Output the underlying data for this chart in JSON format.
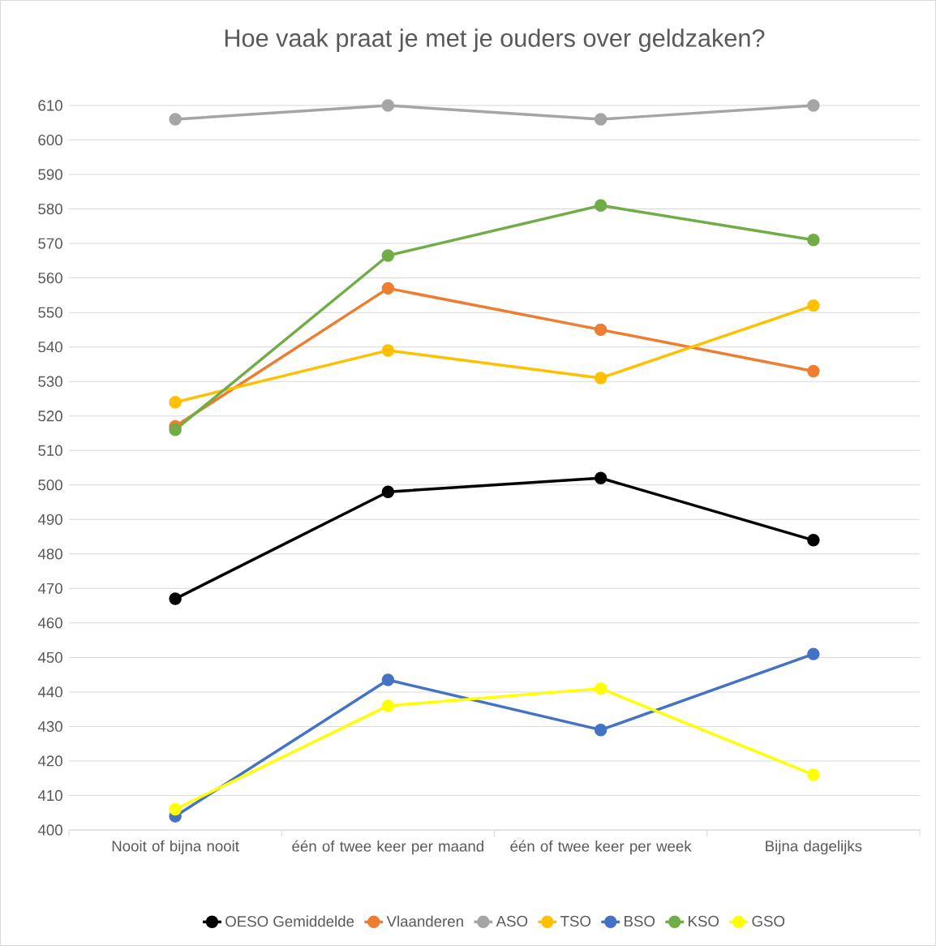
{
  "chart_data": {
    "type": "line",
    "title": "Hoe vaak praat je met je ouders over geldzaken?",
    "categories": [
      "Nooit of bijna nooit",
      "één of twee keer per maand",
      "één of twee keer per week",
      "Bijna dagelijks"
    ],
    "series": [
      {
        "name": "OESO Gemiddelde",
        "color": "#000000",
        "values": [
          467,
          498,
          502,
          484
        ]
      },
      {
        "name": "Vlaanderen",
        "color": "#ed7d31",
        "values": [
          517,
          557,
          545,
          533
        ]
      },
      {
        "name": "ASO",
        "color": "#a5a5a5",
        "values": [
          606,
          610,
          606,
          610
        ]
      },
      {
        "name": "TSO",
        "color": "#ffc000",
        "values": [
          524,
          539,
          531,
          552
        ]
      },
      {
        "name": "BSO",
        "color": "#4472c4",
        "values": [
          404,
          443.5,
          429,
          451
        ]
      },
      {
        "name": "KSO",
        "color": "#70ad47",
        "values": [
          516,
          566.5,
          581,
          571
        ]
      },
      {
        "name": "GSO",
        "color": "#ffff00",
        "values": [
          406,
          436,
          441,
          416
        ]
      }
    ],
    "ylim": [
      400,
      610
    ],
    "yticks": [
      400,
      410,
      420,
      430,
      440,
      450,
      460,
      470,
      480,
      490,
      500,
      510,
      520,
      530,
      540,
      550,
      560,
      570,
      580,
      590,
      600,
      610
    ],
    "grid": "y",
    "legend": "bottom",
    "marker": "circle",
    "line_style": "solid"
  }
}
